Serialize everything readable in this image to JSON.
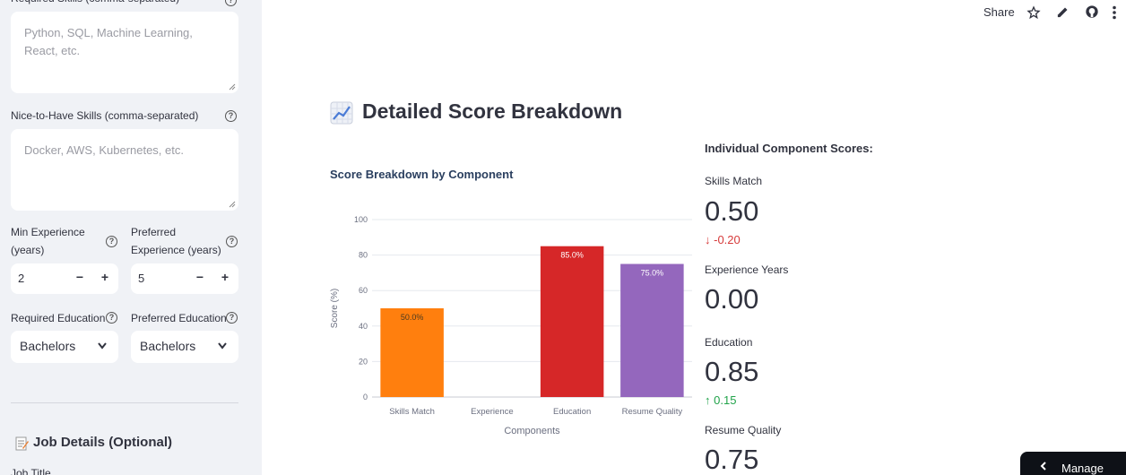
{
  "sidebar": {
    "required_skills_label": "Required Skills (comma-separated)",
    "required_skills_placeholder": "Python, SQL, Machine Learning, React, etc.",
    "nice_skills_label": "Nice-to-Have Skills (comma-separated)",
    "nice_skills_placeholder": "Docker, AWS, Kubernetes, etc.",
    "min_exp_label_line1": "Min Experience",
    "min_exp_label_line2": "(years)",
    "min_exp_value": "2",
    "pref_exp_label_line1": "Preferred",
    "pref_exp_label_line2": "Experience (years)",
    "pref_exp_value": "5",
    "stepper_minus": "−",
    "stepper_plus": "+",
    "req_edu_label": "Required Education",
    "req_edu_value": "Bachelors",
    "pref_edu_label": "Preferred Education",
    "pref_edu_value": "Bachelors",
    "job_details_heading": "Job Details (Optional)",
    "job_title_label": "Job Title",
    "help_glyph": "?"
  },
  "topbar": {
    "share_label": "Share",
    "icons": [
      "star-icon",
      "edit-icon",
      "github-icon",
      "more-vert-icon"
    ]
  },
  "main": {
    "section_title": "Detailed Score Breakdown",
    "metrics_title": "Individual Component Scores:",
    "metrics": [
      {
        "label": "Skills Match",
        "value": "0.50",
        "delta": "-0.20",
        "direction": "down"
      },
      {
        "label": "Experience Years",
        "value": "0.00",
        "delta": "",
        "direction": "none"
      },
      {
        "label": "Education",
        "value": "0.85",
        "delta": "0.15",
        "direction": "up"
      },
      {
        "label": "Resume Quality",
        "value": "0.75",
        "delta": "",
        "direction": "none"
      }
    ]
  },
  "chart_data": {
    "type": "bar",
    "title": "Score Breakdown by Component",
    "xlabel": "Components",
    "ylabel": "Score (%)",
    "categories": [
      "Skills Match",
      "Experience",
      "Education",
      "Resume Quality"
    ],
    "values": [
      50.0,
      0,
      85.0,
      75.0
    ],
    "data_labels": [
      "50.0%",
      "",
      "85.0%",
      "75.0%"
    ],
    "colors": [
      "#ff7f0e",
      "#1f77b4",
      "#d62728",
      "#9467bd"
    ],
    "ylim": [
      0,
      100
    ],
    "yticks": [
      0,
      20,
      40,
      60,
      80,
      100
    ],
    "grid": true
  },
  "footer": {
    "manage_app_label": "Manage app"
  }
}
